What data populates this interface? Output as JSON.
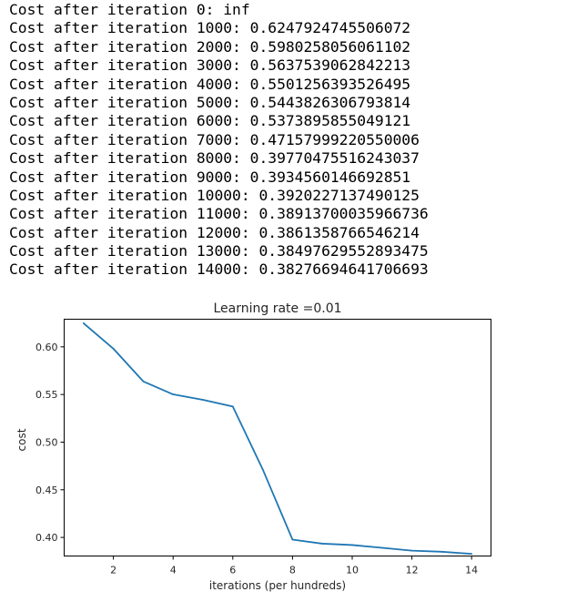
{
  "output_lines": [
    "Cost after iteration 0: inf",
    "Cost after iteration 1000: 0.6247924745506072",
    "Cost after iteration 2000: 0.5980258056061102",
    "Cost after iteration 3000: 0.5637539062842213",
    "Cost after iteration 4000: 0.5501256393526495",
    "Cost after iteration 5000: 0.5443826306793814",
    "Cost after iteration 6000: 0.5373895855049121",
    "Cost after iteration 7000: 0.47157999220550006",
    "Cost after iteration 8000: 0.39770475516243037",
    "Cost after iteration 9000: 0.3934560146692851",
    "Cost after iteration 10000: 0.3920227137490125",
    "Cost after iteration 11000: 0.38913700035966736",
    "Cost after iteration 12000: 0.3861358766546214",
    "Cost after iteration 13000: 0.38497629552893475",
    "Cost after iteration 14000: 0.38276694641706693"
  ],
  "chart_data": {
    "type": "line",
    "title": "Learning rate =0.01",
    "xlabel": "iterations (per hundreds)",
    "ylabel": "cost",
    "xlim": [
      0.35,
      14.65
    ],
    "ylim": [
      0.3805,
      0.629
    ],
    "x_ticks": [
      2,
      4,
      6,
      8,
      10,
      12,
      14
    ],
    "y_ticks": [
      0.4,
      0.45,
      0.5,
      0.55,
      0.6
    ],
    "y_tick_labels": [
      "0.40",
      "0.45",
      "0.50",
      "0.55",
      "0.60"
    ],
    "grid": false,
    "series": [
      {
        "color": "#1f77b4",
        "x": [
          1,
          2,
          3,
          4,
          5,
          6,
          7,
          8,
          9,
          10,
          11,
          12,
          13,
          14
        ],
        "y": [
          0.6247924745506072,
          0.5980258056061102,
          0.5637539062842213,
          0.5501256393526495,
          0.5443826306793814,
          0.5373895855049121,
          0.47157999220550006,
          0.39770475516243037,
          0.3934560146692851,
          0.3920227137490125,
          0.38913700035966736,
          0.3861358766546214,
          0.38497629552893475,
          0.38276694641706693
        ]
      }
    ]
  }
}
